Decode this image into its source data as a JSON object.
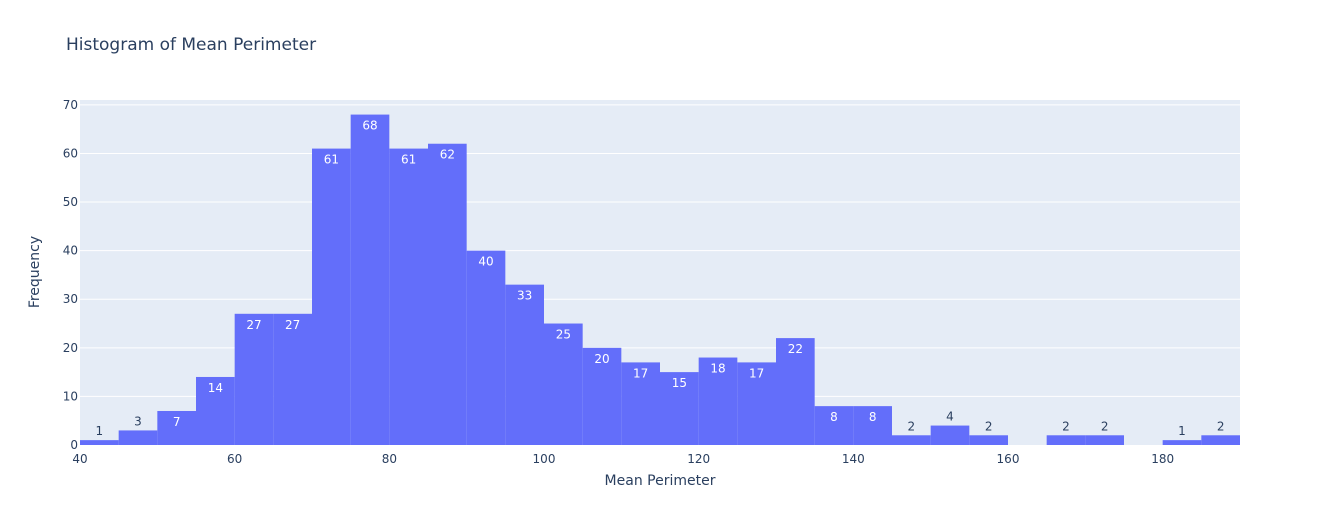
{
  "chart_data": {
    "type": "bar",
    "title": "Histogram of Mean Perimeter",
    "xlabel": "Mean Perimeter",
    "ylabel": "Frequency",
    "bin_width": 5,
    "bin_starts": [
      40,
      45,
      50,
      55,
      60,
      65,
      70,
      75,
      80,
      85,
      90,
      95,
      100,
      105,
      110,
      115,
      120,
      125,
      130,
      135,
      140,
      145,
      150,
      155,
      160,
      165,
      170,
      175,
      180,
      185
    ],
    "values": [
      1,
      3,
      7,
      14,
      27,
      27,
      61,
      68,
      61,
      62,
      40,
      33,
      25,
      20,
      17,
      15,
      18,
      17,
      22,
      8,
      8,
      2,
      4,
      2,
      0,
      2,
      2,
      0,
      1,
      2
    ],
    "xlim": [
      40,
      190
    ],
    "ylim": [
      0,
      71
    ],
    "x_ticks": [
      40,
      60,
      80,
      100,
      120,
      140,
      160,
      180
    ],
    "y_ticks": [
      0,
      10,
      20,
      30,
      40,
      50,
      60,
      70
    ],
    "grid": true,
    "colors": {
      "bar": "#636efa",
      "plot_bg": "#e5ecf6",
      "grid": "#ffffff",
      "text": "#2a3f5f",
      "label_inside": "#ffffff",
      "label_outside": "#2a3f5f"
    }
  }
}
